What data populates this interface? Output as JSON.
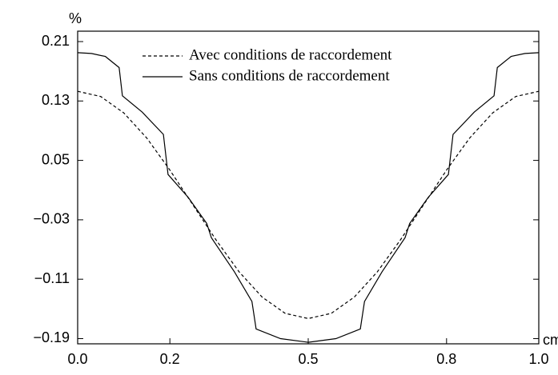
{
  "chart_data": {
    "type": "line",
    "ylabel": "%",
    "xlabel": "cm",
    "xlim": [
      0,
      1
    ],
    "ylim": [
      -0.197,
      0.224
    ],
    "xticks": [
      {
        "value": 0,
        "label": "0.0"
      },
      0.2,
      0.5,
      0.8,
      {
        "value": 1,
        "label": "1.0"
      }
    ],
    "yticks": [
      0.21,
      0.13,
      0.05,
      {
        "value": -0.03,
        "label": "−0.03"
      },
      {
        "value": -0.11,
        "label": "−0.11"
      },
      {
        "value": -0.19,
        "label": "−0.19"
      }
    ],
    "legend": "top",
    "series": [
      {
        "name": "Avec conditions de raccordement",
        "color": "#000000",
        "style": "dashed",
        "x": [
          0,
          0.05,
          0.1,
          0.15,
          0.2,
          0.25,
          0.3,
          0.35,
          0.4,
          0.45,
          0.5,
          0.55,
          0.6,
          0.65,
          0.7,
          0.75,
          0.8,
          0.85,
          0.9,
          0.95,
          1
        ],
        "values": [
          0.143,
          0.136,
          0.114,
          0.08,
          0.037,
          -0.01,
          -0.057,
          -0.1,
          -0.134,
          -0.156,
          -0.163,
          -0.156,
          -0.134,
          -0.1,
          -0.057,
          -0.01,
          0.037,
          0.08,
          0.114,
          0.136,
          0.143
        ]
      },
      {
        "name": "Sans conditions de raccordement",
        "color": "#000000",
        "style": "solid",
        "x": [
          0,
          0.03,
          0.06,
          0.09,
          0.097,
          0.14,
          0.186,
          0.196,
          0.24,
          0.28,
          0.29,
          0.34,
          0.378,
          0.387,
          0.44,
          0.5,
          0.56,
          0.613,
          0.622,
          0.66,
          0.71,
          0.72,
          0.76,
          0.804,
          0.814,
          0.86,
          0.903,
          0.91,
          0.94,
          0.97,
          1
        ],
        "values": [
          0.195,
          0.194,
          0.19,
          0.175,
          0.137,
          0.115,
          0.085,
          0.031,
          0.0,
          -0.035,
          -0.054,
          -0.1,
          -0.14,
          -0.177,
          -0.19,
          -0.195,
          -0.19,
          -0.177,
          -0.14,
          -0.1,
          -0.054,
          -0.035,
          0.0,
          0.031,
          0.085,
          0.115,
          0.137,
          0.175,
          0.19,
          0.194,
          0.195
        ]
      }
    ]
  }
}
